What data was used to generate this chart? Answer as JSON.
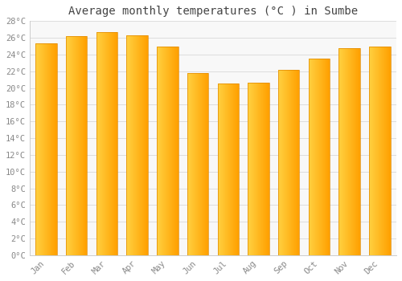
{
  "months": [
    "Jan",
    "Feb",
    "Mar",
    "Apr",
    "May",
    "Jun",
    "Jul",
    "Aug",
    "Sep",
    "Oct",
    "Nov",
    "Dec"
  ],
  "values": [
    25.3,
    26.2,
    26.7,
    26.3,
    25.0,
    21.8,
    20.5,
    20.6,
    22.2,
    23.5,
    24.8,
    25.0
  ],
  "title": "Average monthly temperatures (°C ) in Sumbe",
  "bar_color_light": "#FFD040",
  "bar_color_dark": "#FFA000",
  "bar_edge_color": "#E08800",
  "ylim": [
    0,
    28
  ],
  "yticks": [
    0,
    2,
    4,
    6,
    8,
    10,
    12,
    14,
    16,
    18,
    20,
    22,
    24,
    26,
    28
  ],
  "background_color": "#FFFFFF",
  "plot_bg_color": "#F8F8F8",
  "grid_color": "#DDDDDD",
  "title_fontsize": 10,
  "tick_fontsize": 7.5,
  "title_color": "#444444",
  "tick_color": "#888888"
}
